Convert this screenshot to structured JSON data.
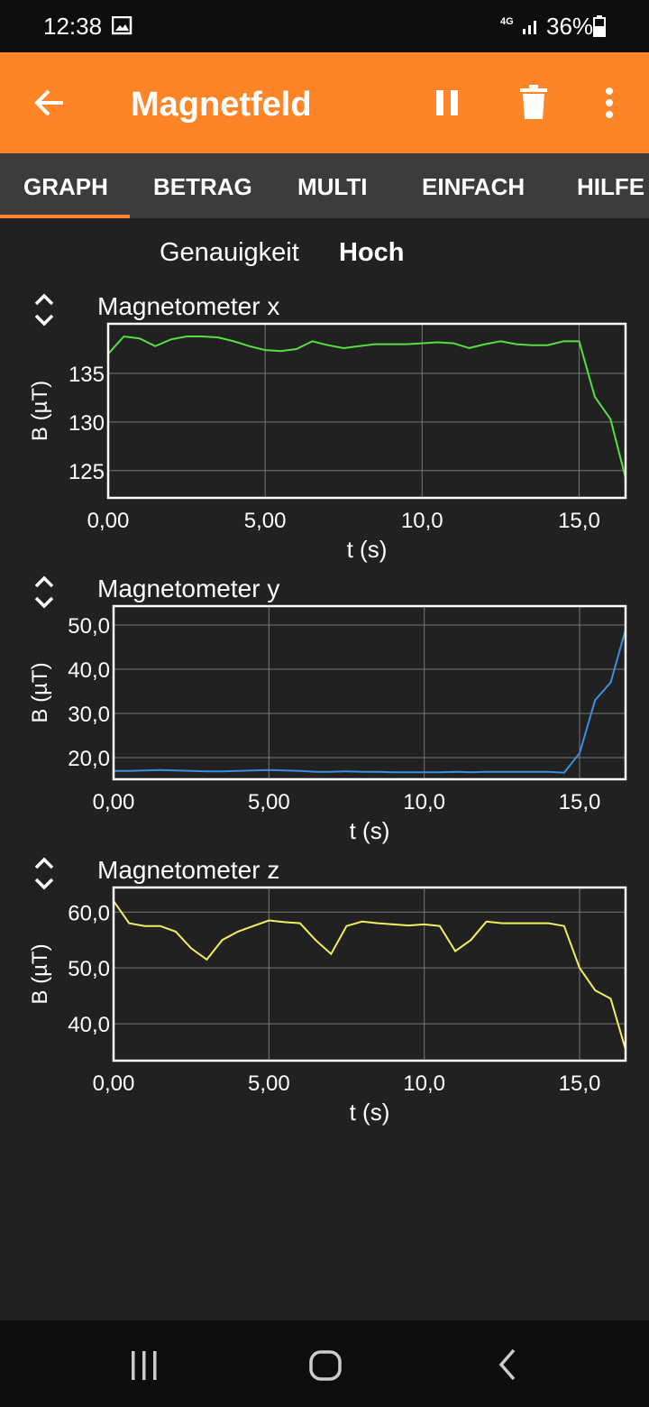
{
  "status_bar": {
    "time": "12:38",
    "network": "4G",
    "battery": "36%"
  },
  "app_bar": {
    "title": "Magnetfeld"
  },
  "tabs": [
    "GRAPH",
    "BETRAG",
    "MULTI",
    "EINFACH",
    "HILFE"
  ],
  "accuracy": {
    "label": "Genauigkeit",
    "value": "Hoch"
  },
  "chart_data": [
    {
      "type": "line",
      "title": "Magnetometer x",
      "x_label": "t (s)",
      "y_label": "B (µT)",
      "grid": true,
      "x": [
        0,
        0.5,
        1,
        1.5,
        2,
        2.5,
        3,
        3.5,
        4,
        4.5,
        5,
        5.5,
        6,
        6.5,
        7,
        7.5,
        8,
        8.5,
        9,
        9.5,
        10,
        10.5,
        11,
        11.5,
        12,
        12.5,
        13,
        13.5,
        14,
        14.5,
        15,
        15.5,
        16,
        16.5
      ],
      "series": [
        {
          "color": "#55e040",
          "values": [
            137.0,
            138.8,
            138.6,
            137.8,
            138.5,
            138.8,
            138.8,
            138.7,
            138.3,
            137.8,
            137.4,
            137.3,
            137.5,
            138.3,
            137.9,
            137.6,
            137.8,
            138.0,
            138.0,
            138.0,
            138.1,
            138.2,
            138.1,
            137.6,
            138.0,
            138.3,
            138.0,
            137.9,
            137.9,
            138.3,
            138.3,
            132.6,
            130.3,
            124.0
          ]
        }
      ],
      "xlim": [
        0,
        16.48
      ],
      "ylim": [
        122.2,
        140.1
      ],
      "xticks": [
        {
          "value": 0,
          "label": "0,00"
        },
        {
          "value": 5,
          "label": "5,00"
        },
        {
          "value": 10,
          "label": "10,0"
        },
        {
          "value": 15,
          "label": "15,0"
        }
      ],
      "yticks": [
        125,
        130,
        135
      ]
    },
    {
      "type": "line",
      "title": "Magnetometer y",
      "x_label": "t (s)",
      "y_label": "B (µT)",
      "grid": true,
      "x": [
        0,
        0.5,
        1,
        1.5,
        2,
        2.5,
        3,
        3.5,
        4,
        4.5,
        5,
        5.5,
        6,
        6.5,
        7,
        7.5,
        8,
        8.5,
        9,
        9.5,
        10,
        10.5,
        11,
        11.5,
        12,
        12.5,
        13,
        13.5,
        14,
        14.5,
        15,
        15.5,
        16,
        16.5
      ],
      "series": [
        {
          "color": "#3a8fe0",
          "values": [
            17.0,
            17.0,
            17.1,
            17.2,
            17.1,
            17.0,
            16.9,
            16.9,
            17.0,
            17.1,
            17.2,
            17.1,
            17.0,
            16.8,
            16.8,
            16.9,
            16.8,
            16.8,
            16.7,
            16.7,
            16.7,
            16.7,
            16.8,
            16.7,
            16.8,
            16.8,
            16.8,
            16.8,
            16.8,
            16.6,
            21.0,
            33.0,
            37.0,
            49.5
          ]
        }
      ],
      "xlim": [
        0,
        16.48
      ],
      "ylim": [
        15.1,
        54.3
      ],
      "xticks": [
        {
          "value": 0,
          "label": "0,00"
        },
        {
          "value": 5,
          "label": "5,00"
        },
        {
          "value": 10,
          "label": "10,0"
        },
        {
          "value": 15,
          "label": "15,0"
        }
      ],
      "yticks": [
        {
          "value": 20,
          "label": "20,0"
        },
        {
          "value": 30,
          "label": "30,0"
        },
        {
          "value": 40,
          "label": "40,0"
        },
        {
          "value": 50,
          "label": "50,0"
        }
      ]
    },
    {
      "type": "line",
      "title": "Magnetometer z",
      "x_label": "t (s)",
      "y_label": "B (µT)",
      "grid": true,
      "x": [
        0,
        0.5,
        1,
        1.5,
        2,
        2.5,
        3,
        3.5,
        4,
        4.5,
        5,
        5.5,
        6,
        6.5,
        7,
        7.5,
        8,
        8.5,
        9,
        9.5,
        10,
        10.5,
        11,
        11.5,
        12,
        12.5,
        13,
        13.5,
        14,
        14.5,
        15,
        15.5,
        16,
        16.5
      ],
      "series": [
        {
          "color": "#f0f060",
          "values": [
            62.0,
            58.0,
            57.5,
            57.5,
            56.5,
            53.5,
            51.5,
            55.0,
            56.5,
            57.5,
            58.5,
            58.2,
            58.0,
            55.0,
            52.5,
            57.5,
            58.3,
            58.0,
            57.8,
            57.6,
            57.8,
            57.5,
            53.0,
            55.0,
            58.3,
            58.0,
            58.0,
            58.0,
            58.0,
            57.5,
            50.0,
            46.0,
            44.5,
            35.0
          ]
        }
      ],
      "xlim": [
        0,
        16.48
      ],
      "ylim": [
        33.4,
        64.4
      ],
      "xticks": [
        {
          "value": 0,
          "label": "0,00"
        },
        {
          "value": 5,
          "label": "5,00"
        },
        {
          "value": 10,
          "label": "10,0"
        },
        {
          "value": 15,
          "label": "15,0"
        }
      ],
      "yticks": [
        {
          "value": 40,
          "label": "40,0"
        },
        {
          "value": 50,
          "label": "50,0"
        },
        {
          "value": 60,
          "label": "60,0"
        }
      ]
    }
  ]
}
